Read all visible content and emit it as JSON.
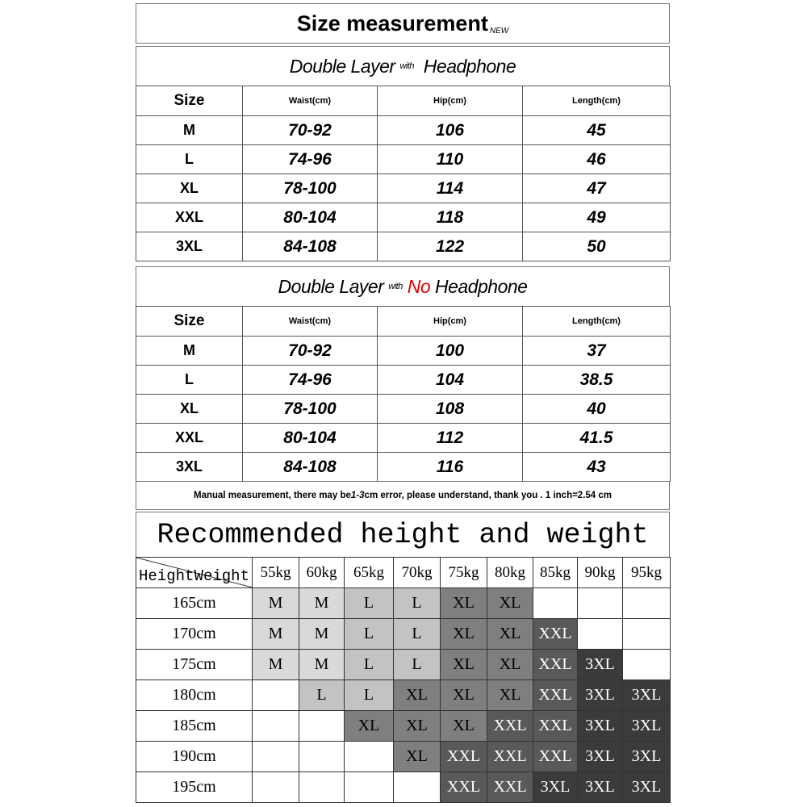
{
  "title": "Size measurement",
  "title_badge": "NEW",
  "tables": [
    {
      "subtitle_a": "Double Layer",
      "subtitle_with": "with",
      "subtitle_no": "",
      "subtitle_b": "Headphone",
      "headers": [
        "Size",
        "Waist(cm)",
        "Hip(cm)",
        "Length(cm)"
      ],
      "rows": [
        [
          "M",
          "70-92",
          "106",
          "45"
        ],
        [
          "L",
          "74-96",
          "110",
          "46"
        ],
        [
          "XL",
          "78-100",
          "114",
          "47"
        ],
        [
          "XXL",
          "80-104",
          "118",
          "49"
        ],
        [
          "3XL",
          "84-108",
          "122",
          "50"
        ]
      ]
    },
    {
      "subtitle_a": "Double Layer",
      "subtitle_with": "with",
      "subtitle_no": "No",
      "subtitle_b": "Headphone",
      "headers": [
        "Size",
        "Waist(cm)",
        "Hip(cm)",
        "Length(cm)"
      ],
      "rows": [
        [
          "M",
          "70-92",
          "100",
          "37"
        ],
        [
          "L",
          "74-96",
          "104",
          "38.5"
        ],
        [
          "XL",
          "78-100",
          "108",
          "40"
        ],
        [
          "XXL",
          "80-104",
          "112",
          "41.5"
        ],
        [
          "3XL",
          "84-108",
          "116",
          "43"
        ]
      ]
    }
  ],
  "note": {
    "a": "Manual measurement, there may be ",
    "b": "1-3",
    "c": "cm error, please understand, thank you .   1 inch=2.54 cm"
  },
  "recommend": {
    "title": "Recommended height and weight",
    "corner_height": "Height",
    "corner_weight": "Weight",
    "weights": [
      "55kg",
      "60kg",
      "65kg",
      "70kg",
      "75kg",
      "80kg",
      "85kg",
      "90kg",
      "95kg"
    ],
    "rows": [
      {
        "height": "165cm",
        "sizes": [
          "M",
          "M",
          "L",
          "L",
          "XL",
          "XL",
          "",
          "",
          ""
        ]
      },
      {
        "height": "170cm",
        "sizes": [
          "M",
          "M",
          "L",
          "L",
          "XL",
          "XL",
          "XXL",
          "",
          ""
        ]
      },
      {
        "height": "175cm",
        "sizes": [
          "M",
          "M",
          "L",
          "L",
          "XL",
          "XL",
          "XXL",
          "3XL",
          ""
        ]
      },
      {
        "height": "180cm",
        "sizes": [
          "",
          "L",
          "L",
          "XL",
          "XL",
          "XL",
          "XXL",
          "3XL",
          "3XL"
        ]
      },
      {
        "height": "185cm",
        "sizes": [
          "",
          "",
          "XL",
          "XL",
          "XL",
          "XXL",
          "XXL",
          "3XL",
          "3XL"
        ]
      },
      {
        "height": "190cm",
        "sizes": [
          "",
          "",
          "",
          "XL",
          "XXL",
          "XXL",
          "XXL",
          "3XL",
          "3XL"
        ]
      },
      {
        "height": "195cm",
        "sizes": [
          "",
          "",
          "",
          "",
          "XXL",
          "XXL",
          "3XL",
          "3XL",
          "3XL"
        ]
      }
    ],
    "colors": {
      "M": "#d9d9d9",
      "L": "#c3c3c3",
      "XL": "#7f7f7f",
      "XXL": "#595959",
      "3XL": "#3b3b3b"
    },
    "text_colors": {
      "M": "#000000",
      "L": "#000000",
      "XL": "#000000",
      "XXL": "#ffffff",
      "3XL": "#ffffff"
    }
  }
}
